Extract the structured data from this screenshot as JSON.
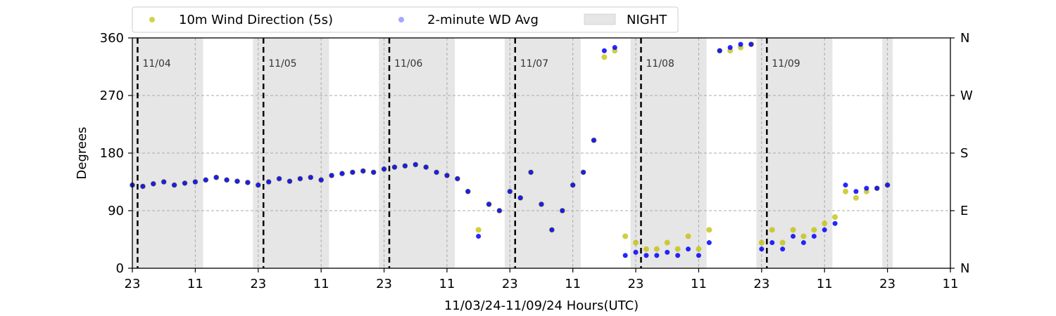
{
  "chart_data": {
    "type": "scatter",
    "xlabel": "11/03/24-11/09/24  Hours(UTC)",
    "ylabel": "Degrees",
    "xlim": [
      23,
      179
    ],
    "ylim": [
      0,
      360
    ],
    "x_ticks": [
      {
        "hour": 23,
        "label": "23"
      },
      {
        "hour": 35,
        "label": "11"
      },
      {
        "hour": 47,
        "label": "23"
      },
      {
        "hour": 59,
        "label": "11"
      },
      {
        "hour": 71,
        "label": "23"
      },
      {
        "hour": 83,
        "label": "11"
      },
      {
        "hour": 95,
        "label": "23"
      },
      {
        "hour": 107,
        "label": "11"
      },
      {
        "hour": 119,
        "label": "23"
      },
      {
        "hour": 131,
        "label": "11"
      },
      {
        "hour": 143,
        "label": "23"
      },
      {
        "hour": 155,
        "label": "11"
      },
      {
        "hour": 167,
        "label": "23"
      },
      {
        "hour": 179,
        "label": "11"
      }
    ],
    "y_ticks_left": [
      "0",
      "90",
      "180",
      "270",
      "360"
    ],
    "y_ticks_right": [
      "N",
      "E",
      "S",
      "W",
      "N"
    ],
    "y_tick_values": [
      0,
      90,
      180,
      270,
      360
    ],
    "grid": "dashed, x at 11h and 23h, y at 90/180/270",
    "legend": {
      "placement": "top, above plot",
      "entries": [
        {
          "label": "10m Wind Direction (5s)",
          "color": "#bfbf00",
          "marker": "dot"
        },
        {
          "label": "2-minute WD Avg",
          "color": "#0000ff",
          "marker": "dot"
        },
        {
          "label": "NIGHT",
          "color": "#e6e6e6",
          "marker": "patch"
        }
      ]
    },
    "night_periods": [
      [
        22,
        36.5
      ],
      [
        46,
        60.5
      ],
      [
        70,
        84.5
      ],
      [
        94,
        108.5
      ],
      [
        118,
        132.5
      ],
      [
        142,
        156.5
      ],
      [
        166,
        168
      ]
    ],
    "day_markers": [
      {
        "hour": 24,
        "label": "11/04"
      },
      {
        "hour": 48,
        "label": "11/05"
      },
      {
        "hour": 72,
        "label": "11/06"
      },
      {
        "hour": 96,
        "label": "11/07"
      },
      {
        "hour": 120,
        "label": "11/08"
      },
      {
        "hour": 144,
        "label": "11/09"
      }
    ],
    "series": [
      {
        "name": "10m Wind Direction (5s)",
        "color": "#bfbf00",
        "x": [
          23,
          25,
          27,
          29,
          31,
          33,
          35,
          37,
          39,
          41,
          43,
          45,
          47,
          49,
          51,
          53,
          55,
          57,
          59,
          61,
          63,
          65,
          67,
          69,
          71,
          73,
          75,
          77,
          79,
          81,
          83,
          85,
          87,
          89,
          91,
          93,
          95,
          97,
          99,
          101,
          103,
          105,
          107,
          109,
          111,
          113,
          115,
          117,
          119,
          121,
          123,
          125,
          127,
          129,
          131,
          133,
          135,
          137,
          139,
          141,
          143,
          145,
          147,
          149,
          151,
          153,
          155,
          157,
          159,
          161,
          163,
          165,
          167
        ],
        "y": [
          130,
          128,
          132,
          135,
          130,
          133,
          135,
          138,
          142,
          138,
          136,
          134,
          130,
          135,
          140,
          136,
          140,
          142,
          138,
          145,
          148,
          150,
          152,
          150,
          155,
          158,
          160,
          162,
          158,
          150,
          145,
          140,
          120,
          60,
          100,
          90,
          120,
          110,
          150,
          100,
          60,
          90,
          130,
          150,
          200,
          330,
          340,
          50,
          40,
          30,
          30,
          40,
          30,
          50,
          30,
          60,
          340,
          340,
          345,
          350,
          40,
          60,
          40,
          60,
          50,
          60,
          70,
          80,
          120,
          110,
          120,
          125,
          130
        ]
      },
      {
        "name": "2-minute WD Avg",
        "color": "#0000ff",
        "x": [
          23,
          25,
          27,
          29,
          31,
          33,
          35,
          37,
          39,
          41,
          43,
          45,
          47,
          49,
          51,
          53,
          55,
          57,
          59,
          61,
          63,
          65,
          67,
          69,
          71,
          73,
          75,
          77,
          79,
          81,
          83,
          85,
          87,
          89,
          91,
          93,
          95,
          97,
          99,
          101,
          103,
          105,
          107,
          109,
          111,
          113,
          115,
          117,
          119,
          121,
          123,
          125,
          127,
          129,
          131,
          133,
          135,
          137,
          139,
          141,
          143,
          145,
          147,
          149,
          151,
          153,
          155,
          157,
          159,
          161,
          163,
          165,
          167
        ],
        "y": [
          130,
          128,
          132,
          135,
          130,
          133,
          135,
          138,
          142,
          138,
          136,
          134,
          130,
          135,
          140,
          136,
          140,
          142,
          138,
          145,
          148,
          150,
          152,
          150,
          155,
          158,
          160,
          162,
          158,
          150,
          145,
          140,
          120,
          50,
          100,
          90,
          120,
          110,
          150,
          100,
          60,
          90,
          130,
          150,
          200,
          340,
          345,
          20,
          25,
          20,
          20,
          25,
          20,
          30,
          20,
          40,
          340,
          345,
          350,
          350,
          30,
          40,
          30,
          50,
          40,
          50,
          60,
          70,
          130,
          120,
          125,
          125,
          130
        ]
      }
    ]
  }
}
